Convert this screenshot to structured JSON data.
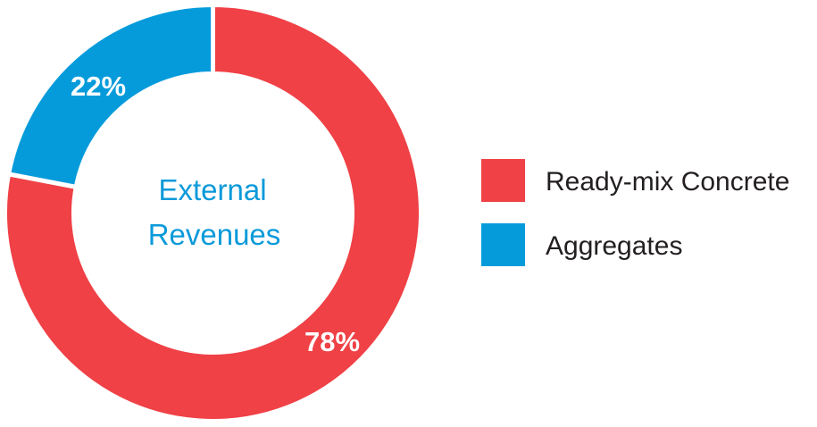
{
  "chart_data": {
    "type": "pie",
    "variant": "donut",
    "center_text": [
      "External",
      "Revenues"
    ],
    "center_text_color": "#0a9ad9",
    "slices": [
      {
        "name": "Ready-mix Concrete",
        "value": 78,
        "label": "78%",
        "color": "#ef4146"
      },
      {
        "name": "Aggregates",
        "value": 22,
        "label": "22%",
        "color": "#059bdb"
      }
    ],
    "start": "top",
    "direction": "clockwise",
    "legend_placement": "right"
  }
}
